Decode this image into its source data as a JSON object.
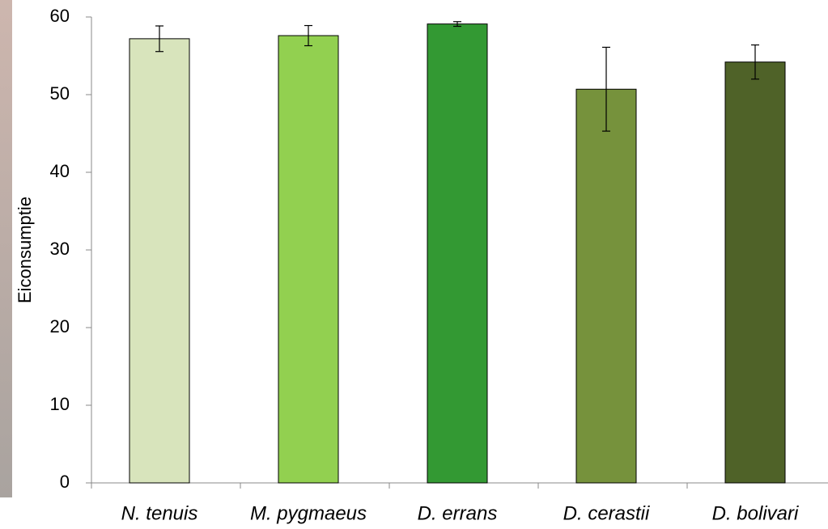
{
  "chart_data": {
    "type": "bar",
    "y_label": "Eiconsumptie",
    "categories": [
      "N. tenuis",
      "M. pygmaeus",
      "D. errans",
      "D. cerastii",
      "D. bolivari"
    ],
    "values": [
      57.2,
      57.6,
      59.1,
      50.7,
      54.2
    ],
    "errors": [
      1.65,
      1.3,
      0.3,
      5.4,
      2.2
    ],
    "colors": [
      "#d8e4bc",
      "#92d050",
      "#339933",
      "#76923c",
      "#4f6228"
    ],
    "ylim": [
      0,
      60
    ],
    "yticks": [
      0,
      10,
      20,
      30,
      40,
      50,
      60
    ],
    "grid": false
  }
}
